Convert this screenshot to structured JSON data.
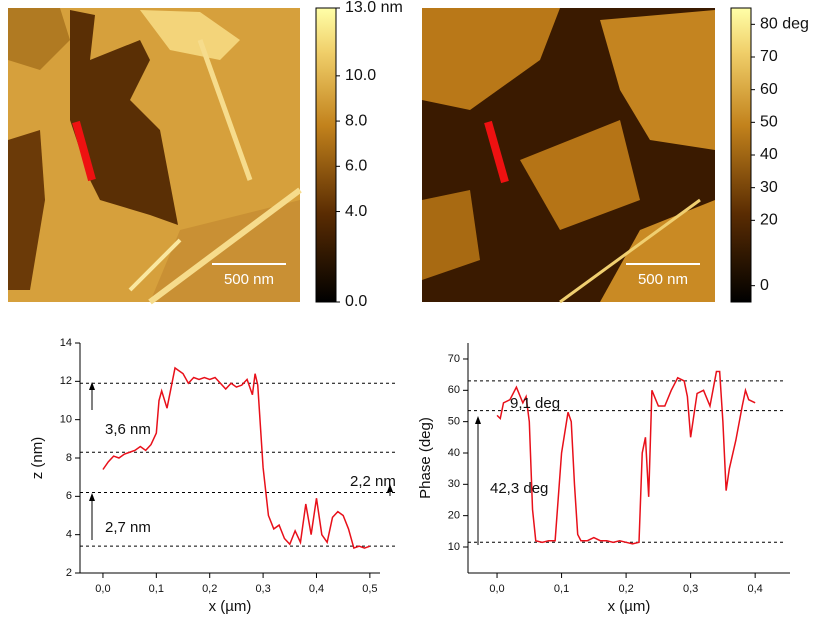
{
  "images": [
    {
      "scale_bar": "500 nm",
      "colorbar": {
        "range": [
          0,
          13
        ],
        "ticks": [
          {
            "value": 13,
            "label": "13.0 nm"
          },
          {
            "value": 10,
            "label": "10.0"
          },
          {
            "value": 8,
            "label": "8.0"
          },
          {
            "value": 6,
            "label": "6.0"
          },
          {
            "value": 4,
            "label": "4.0"
          },
          {
            "value": 0,
            "label": "0.0"
          }
        ]
      }
    },
    {
      "scale_bar": "500 nm",
      "colorbar": {
        "range": [
          -5,
          85
        ],
        "ticks": [
          {
            "value": 80,
            "label": "80 deg"
          },
          70,
          60,
          50,
          40,
          30,
          20,
          0
        ]
      }
    }
  ],
  "chart_data": [
    {
      "type": "line",
      "xlabel": "x (µm)",
      "ylabel": "z (nm)",
      "x": [
        0,
        0.01,
        0.02,
        0.03,
        0.04,
        0.05,
        0.06,
        0.07,
        0.08,
        0.09,
        0.1,
        0.105,
        0.11,
        0.12,
        0.13,
        0.135,
        0.14,
        0.15,
        0.16,
        0.17,
        0.18,
        0.19,
        0.2,
        0.21,
        0.22,
        0.23,
        0.24,
        0.25,
        0.26,
        0.27,
        0.28,
        0.285,
        0.29,
        0.3,
        0.31,
        0.32,
        0.33,
        0.34,
        0.35,
        0.36,
        0.37,
        0.38,
        0.39,
        0.4,
        0.41,
        0.42,
        0.43,
        0.44,
        0.45,
        0.46,
        0.47,
        0.48,
        0.49,
        0.5
      ],
      "series": [
        {
          "color": "#e8101a",
          "values": [
            7.4,
            7.8,
            8.1,
            8.0,
            8.2,
            8.3,
            8.4,
            8.6,
            8.4,
            8.7,
            9.3,
            11.0,
            11.5,
            10.6,
            12.0,
            12.7,
            12.6,
            12.4,
            11.9,
            12.2,
            12.1,
            12.2,
            12.1,
            12.2,
            11.9,
            11.6,
            11.9,
            11.7,
            11.8,
            12.1,
            11.3,
            12.4,
            11.8,
            7.5,
            5.0,
            4.3,
            4.5,
            3.8,
            3.5,
            4.2,
            3.6,
            5.6,
            4.0,
            5.9,
            4.0,
            3.6,
            4.9,
            5.2,
            5.0,
            4.3,
            3.3,
            3.4,
            3.3,
            3.4
          ]
        }
      ],
      "xlim": [
        -0.043,
        0.519
      ],
      "ylim": [
        2,
        14
      ],
      "xticks": [
        {
          "value": 0,
          "label": "0,0"
        },
        {
          "value": 0.1,
          "label": "0,1"
        },
        {
          "value": 0.2,
          "label": "0,2"
        },
        {
          "value": 0.3,
          "label": "0,3"
        },
        {
          "value": 0.4,
          "label": "0,4"
        },
        {
          "value": 0.5,
          "label": "0,5"
        }
      ],
      "yticks": [
        2,
        4,
        6,
        8,
        10,
        12,
        14
      ],
      "reference_lines": [
        11.9,
        8.3,
        6.2,
        3.4
      ],
      "annotations": [
        "3,6 nm",
        "2,2 nm",
        "2,7 nm"
      ]
    },
    {
      "type": "line",
      "xlabel": "x (µm)",
      "ylabel": "Phase (deg)",
      "x": [
        0,
        0.005,
        0.01,
        0.02,
        0.03,
        0.04,
        0.045,
        0.05,
        0.055,
        0.06,
        0.07,
        0.08,
        0.09,
        0.1,
        0.11,
        0.115,
        0.12,
        0.125,
        0.13,
        0.14,
        0.15,
        0.16,
        0.17,
        0.18,
        0.19,
        0.2,
        0.21,
        0.22,
        0.225,
        0.23,
        0.235,
        0.24,
        0.25,
        0.26,
        0.27,
        0.28,
        0.29,
        0.295,
        0.3,
        0.31,
        0.32,
        0.33,
        0.34,
        0.345,
        0.35,
        0.355,
        0.36,
        0.37,
        0.38,
        0.385,
        0.39,
        0.4
      ],
      "series": [
        {
          "color": "#e8101a",
          "values": [
            52,
            51,
            56,
            57,
            61,
            56,
            58,
            50,
            22,
            12,
            11.5,
            12,
            12,
            40,
            53,
            50,
            30,
            14,
            12,
            12,
            13,
            12,
            12,
            11.5,
            12,
            11.5,
            11,
            11.5,
            40,
            45,
            26,
            60,
            55,
            55,
            60,
            64,
            63,
            58,
            45,
            59,
            60,
            55,
            66,
            66,
            50,
            28,
            35,
            44,
            55,
            60,
            57,
            56
          ]
        }
      ],
      "xlim": [
        -0.045,
        0.454
      ],
      "ylim": [
        1.7,
        75.1
      ],
      "xticks": [
        {
          "value": 0,
          "label": "0,0"
        },
        {
          "value": 0.1,
          "label": "0,1"
        },
        {
          "value": 0.2,
          "label": "0,2"
        },
        {
          "value": 0.3,
          "label": "0,3"
        },
        {
          "value": 0.4,
          "label": "0,4"
        }
      ],
      "yticks": [
        10,
        20,
        30,
        40,
        50,
        60,
        70
      ],
      "reference_lines": [
        63,
        53.5,
        11.5
      ],
      "annotations": [
        "9,1 deg",
        "42,3 deg"
      ]
    }
  ]
}
